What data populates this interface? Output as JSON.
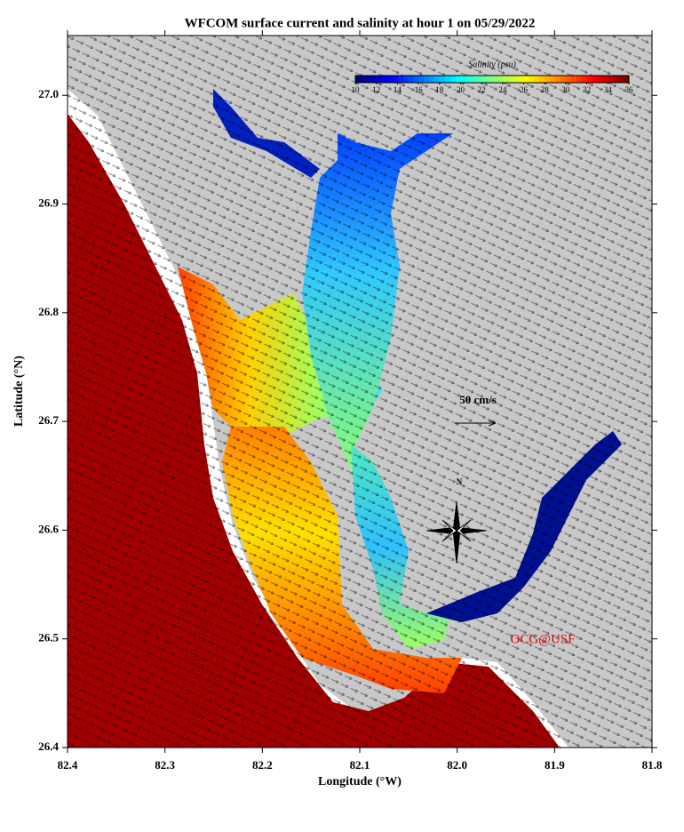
{
  "title": "WFCOM surface current and salinity at hour 1 on 05/29/2022",
  "x_label": "Longitude (°W)",
  "y_label": "Latitude (°N)",
  "xlim": [
    82.4,
    81.8
  ],
  "xticks": [
    82.4,
    82.3,
    82.2,
    82.1,
    {
      "value": 82,
      "label": "82.0"
    },
    81.9,
    81.8
  ],
  "ylim": [
    26.4,
    27.055
  ],
  "yticks": [
    26.4,
    26.5,
    26.6,
    26.7,
    26.8,
    26.9,
    {
      "value": 27,
      "label": "27.0"
    }
  ],
  "colorbar": {
    "label": "Salinity (psu)",
    "range": [
      10,
      36
    ],
    "ticks": [
      10,
      12,
      14,
      16,
      18,
      20,
      22,
      24,
      26,
      28,
      30,
      32,
      34,
      36
    ]
  },
  "scale_label": "50 cm/s",
  "compass": "N",
  "credit": "OCG@USF"
}
